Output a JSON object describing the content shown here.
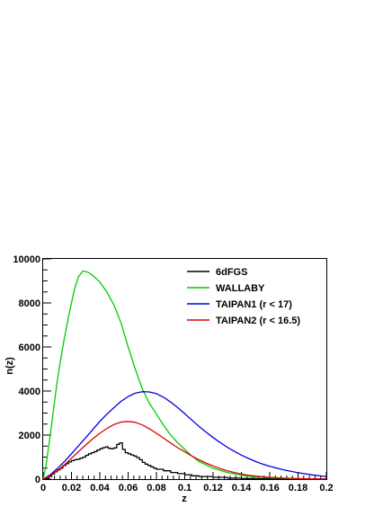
{
  "chart_data": {
    "type": "line",
    "xlabel": "z",
    "ylabel": "n(z)",
    "xlim": [
      0,
      0.2
    ],
    "ylim": [
      0,
      10000
    ],
    "x_ticks": [
      "0",
      "0.02",
      "0.04",
      "0.06",
      "0.08",
      "0.1",
      "0.12",
      "0.14",
      "0.16",
      "0.18",
      "0.2"
    ],
    "y_ticks": [
      "0",
      "2000",
      "4000",
      "6000",
      "8000",
      "10000"
    ],
    "grid": false,
    "legend_position": "top-right",
    "series": [
      {
        "name": "6dFGS",
        "color": "#000000",
        "step": true,
        "points": [
          [
            0,
            0
          ],
          [
            0.002,
            30
          ],
          [
            0.004,
            120
          ],
          [
            0.006,
            230
          ],
          [
            0.008,
            330
          ],
          [
            0.01,
            420
          ],
          [
            0.012,
            500
          ],
          [
            0.014,
            620
          ],
          [
            0.016,
            700
          ],
          [
            0.018,
            780
          ],
          [
            0.02,
            840
          ],
          [
            0.022,
            880
          ],
          [
            0.024,
            900
          ],
          [
            0.026,
            950
          ],
          [
            0.028,
            1000
          ],
          [
            0.03,
            1080
          ],
          [
            0.032,
            1150
          ],
          [
            0.034,
            1200
          ],
          [
            0.036,
            1250
          ],
          [
            0.038,
            1320
          ],
          [
            0.04,
            1380
          ],
          [
            0.042,
            1430
          ],
          [
            0.044,
            1460
          ],
          [
            0.046,
            1400
          ],
          [
            0.048,
            1380
          ],
          [
            0.05,
            1420
          ],
          [
            0.052,
            1580
          ],
          [
            0.054,
            1650
          ],
          [
            0.056,
            1350
          ],
          [
            0.058,
            1200
          ],
          [
            0.06,
            1150
          ],
          [
            0.062,
            1100
          ],
          [
            0.064,
            1050
          ],
          [
            0.066,
            980
          ],
          [
            0.068,
            880
          ],
          [
            0.07,
            760
          ],
          [
            0.072,
            680
          ],
          [
            0.074,
            620
          ],
          [
            0.076,
            560
          ],
          [
            0.078,
            500
          ],
          [
            0.08,
            450
          ],
          [
            0.085,
            380
          ],
          [
            0.09,
            300
          ],
          [
            0.095,
            250
          ],
          [
            0.1,
            200
          ],
          [
            0.105,
            150
          ],
          [
            0.11,
            120
          ],
          [
            0.12,
            80
          ],
          [
            0.13,
            50
          ],
          [
            0.14,
            30
          ],
          [
            0.15,
            20
          ],
          [
            0.16,
            10
          ],
          [
            0.18,
            5
          ],
          [
            0.2,
            2
          ]
        ]
      },
      {
        "name": "WALLABY",
        "color": "#00cc00",
        "step": false,
        "points": [
          [
            0,
            0
          ],
          [
            0.002,
            600
          ],
          [
            0.005,
            2000
          ],
          [
            0.008,
            3500
          ],
          [
            0.01,
            4500
          ],
          [
            0.012,
            5300
          ],
          [
            0.015,
            6400
          ],
          [
            0.018,
            7400
          ],
          [
            0.02,
            8000
          ],
          [
            0.022,
            8600
          ],
          [
            0.025,
            9200
          ],
          [
            0.028,
            9450
          ],
          [
            0.03,
            9430
          ],
          [
            0.032,
            9380
          ],
          [
            0.035,
            9250
          ],
          [
            0.04,
            8950
          ],
          [
            0.045,
            8500
          ],
          [
            0.05,
            7900
          ],
          [
            0.055,
            7100
          ],
          [
            0.06,
            6000
          ],
          [
            0.065,
            5000
          ],
          [
            0.07,
            4100
          ],
          [
            0.075,
            3450
          ],
          [
            0.08,
            2950
          ],
          [
            0.085,
            2450
          ],
          [
            0.09,
            2000
          ],
          [
            0.095,
            1650
          ],
          [
            0.1,
            1350
          ],
          [
            0.105,
            1050
          ],
          [
            0.11,
            800
          ],
          [
            0.12,
            500
          ],
          [
            0.13,
            300
          ],
          [
            0.14,
            170
          ],
          [
            0.15,
            100
          ],
          [
            0.16,
            60
          ],
          [
            0.17,
            35
          ],
          [
            0.18,
            20
          ],
          [
            0.19,
            10
          ],
          [
            0.2,
            5
          ]
        ]
      },
      {
        "name": "TAIPAN1 (r < 17)",
        "color": "#0000dd",
        "step": false,
        "points": [
          [
            0,
            0
          ],
          [
            0.005,
            200
          ],
          [
            0.01,
            480
          ],
          [
            0.015,
            800
          ],
          [
            0.02,
            1150
          ],
          [
            0.025,
            1520
          ],
          [
            0.03,
            1880
          ],
          [
            0.035,
            2250
          ],
          [
            0.04,
            2620
          ],
          [
            0.045,
            2950
          ],
          [
            0.05,
            3250
          ],
          [
            0.055,
            3530
          ],
          [
            0.06,
            3750
          ],
          [
            0.065,
            3900
          ],
          [
            0.07,
            3970
          ],
          [
            0.075,
            3960
          ],
          [
            0.08,
            3880
          ],
          [
            0.085,
            3720
          ],
          [
            0.09,
            3500
          ],
          [
            0.095,
            3250
          ],
          [
            0.1,
            2970
          ],
          [
            0.105,
            2680
          ],
          [
            0.11,
            2400
          ],
          [
            0.115,
            2140
          ],
          [
            0.12,
            1890
          ],
          [
            0.125,
            1660
          ],
          [
            0.13,
            1450
          ],
          [
            0.135,
            1260
          ],
          [
            0.14,
            1090
          ],
          [
            0.145,
            940
          ],
          [
            0.15,
            800
          ],
          [
            0.155,
            680
          ],
          [
            0.16,
            580
          ],
          [
            0.17,
            420
          ],
          [
            0.18,
            290
          ],
          [
            0.19,
            190
          ],
          [
            0.2,
            120
          ]
        ]
      },
      {
        "name": "TAIPAN2 (r < 16.5)",
        "color": "#dd0000",
        "step": false,
        "points": [
          [
            0,
            0
          ],
          [
            0.005,
            150
          ],
          [
            0.01,
            380
          ],
          [
            0.015,
            650
          ],
          [
            0.02,
            950
          ],
          [
            0.025,
            1250
          ],
          [
            0.03,
            1550
          ],
          [
            0.035,
            1830
          ],
          [
            0.04,
            2080
          ],
          [
            0.045,
            2300
          ],
          [
            0.05,
            2480
          ],
          [
            0.055,
            2590
          ],
          [
            0.06,
            2620
          ],
          [
            0.065,
            2580
          ],
          [
            0.07,
            2460
          ],
          [
            0.075,
            2290
          ],
          [
            0.08,
            2080
          ],
          [
            0.085,
            1860
          ],
          [
            0.09,
            1640
          ],
          [
            0.095,
            1430
          ],
          [
            0.1,
            1240
          ],
          [
            0.105,
            1050
          ],
          [
            0.11,
            880
          ],
          [
            0.115,
            730
          ],
          [
            0.12,
            600
          ],
          [
            0.125,
            480
          ],
          [
            0.13,
            380
          ],
          [
            0.135,
            300
          ],
          [
            0.14,
            230
          ],
          [
            0.145,
            180
          ],
          [
            0.15,
            140
          ],
          [
            0.16,
            80
          ],
          [
            0.17,
            45
          ],
          [
            0.18,
            25
          ],
          [
            0.19,
            12
          ],
          [
            0.2,
            6
          ]
        ]
      }
    ]
  }
}
